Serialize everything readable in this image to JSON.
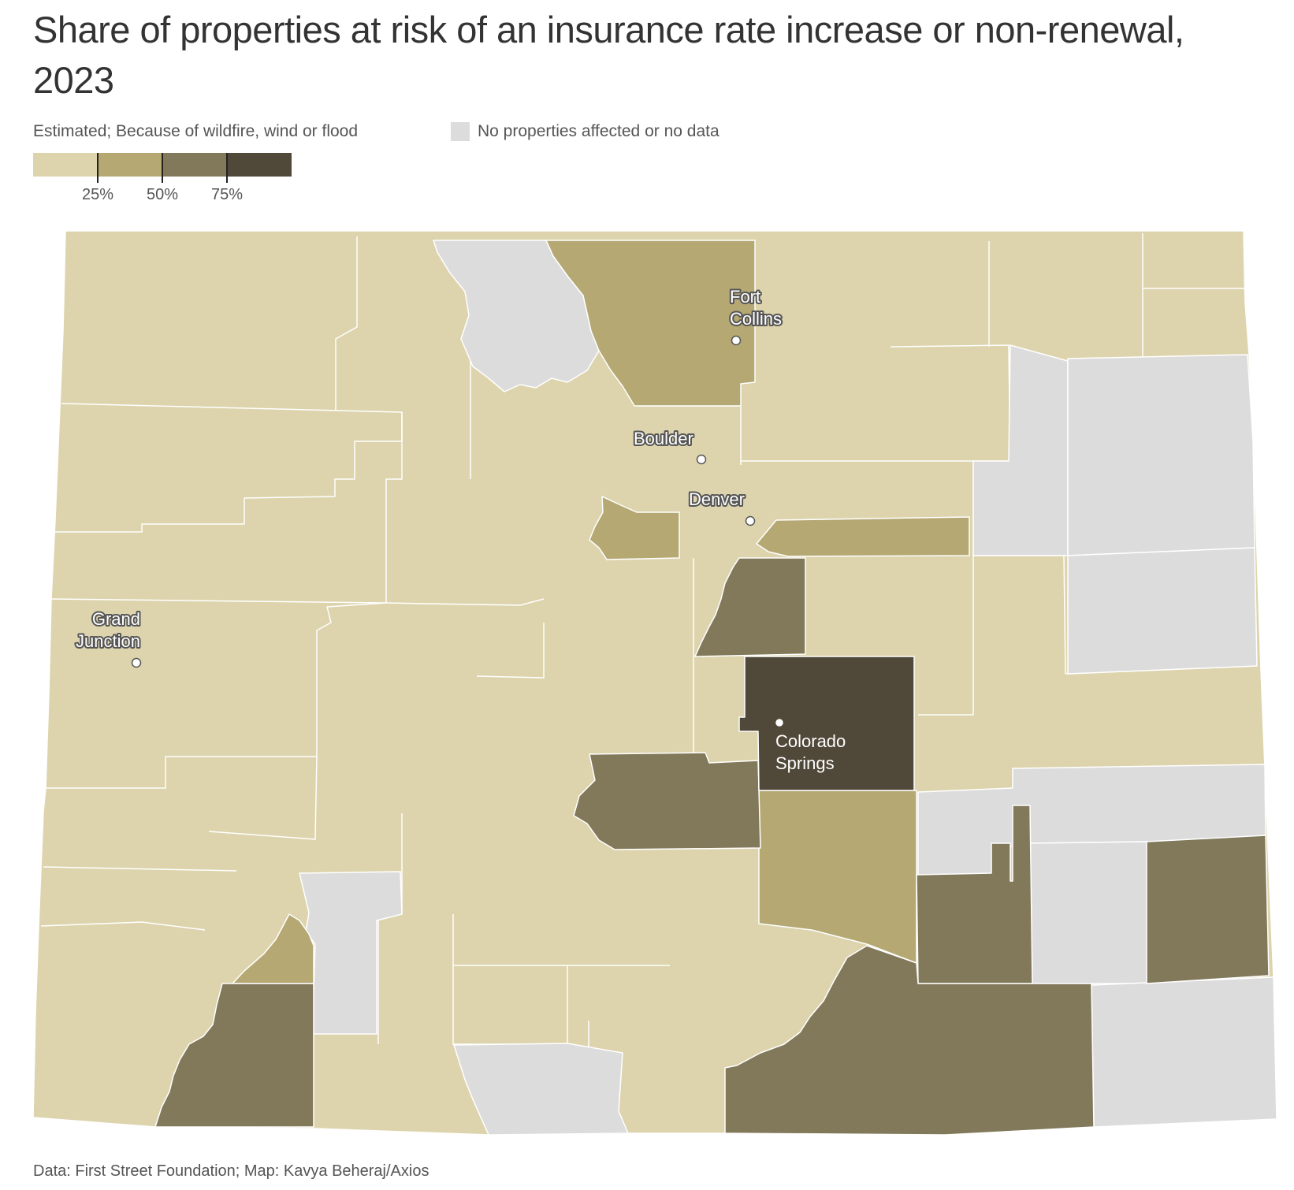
{
  "title": "Share of properties at risk of an insurance rate increase or non-renewal, 2023",
  "subtitle": "Estimated; Because of wildfire, wind or flood",
  "no_data_label": "No properties affected or no data",
  "legend": {
    "colors": [
      "#ddd4ad",
      "#b5a873",
      "#82795b",
      "#504839"
    ],
    "tick_labels": [
      "25%",
      "50%",
      "75%"
    ]
  },
  "colors": {
    "bin1": "#ddd4ad",
    "bin2": "#b5a873",
    "bin3": "#82795b",
    "bin4": "#504839",
    "nodata": "#dcdcdc",
    "county_border": "#ffffff"
  },
  "cities": [
    {
      "name": "Fort\nCollins",
      "line1": "Fort",
      "line2": "Collins",
      "label_color": "#ffffff",
      "outline_color": "#555555"
    },
    {
      "name": "Boulder",
      "line1": "Boulder",
      "label_color": "#ffffff",
      "outline_color": "#555555"
    },
    {
      "name": "Denver",
      "line1": "Denver",
      "label_color": "#ffffff",
      "outline_color": "#555555"
    },
    {
      "name": "Grand Junction",
      "line1": "Grand",
      "line2": "Junction",
      "label_color": "#ffffff",
      "outline_color": "#555555"
    },
    {
      "name": "Colorado Springs",
      "line1": "Colorado",
      "line2": "Springs",
      "label_color": "#ffffff",
      "outline_color": "#504839"
    }
  ],
  "footer": "Data: First Street Foundation; Map: Kavya Beheraj/Axios"
}
